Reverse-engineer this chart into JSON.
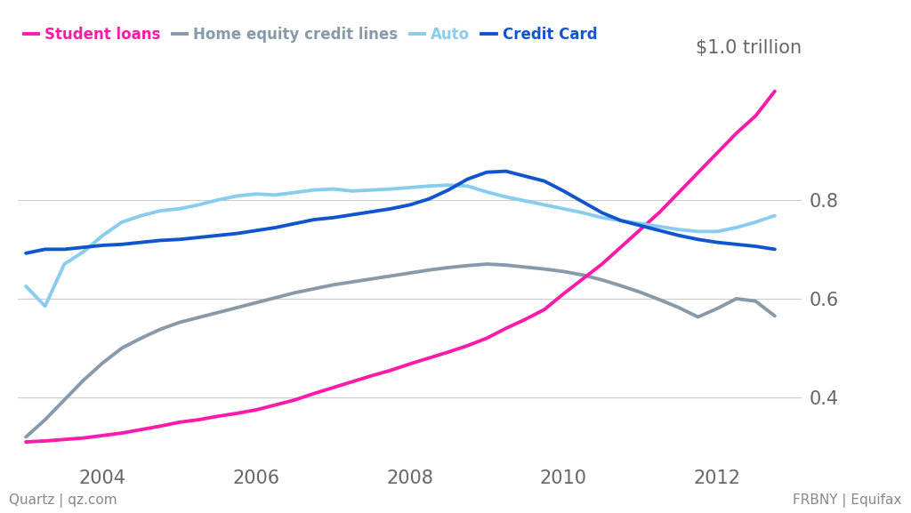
{
  "legend_labels": [
    "Student loans",
    "Home equity credit lines",
    "Auto",
    "Credit Card"
  ],
  "legend_colors": [
    "#ff1aaa",
    "#8899aa",
    "#88ccee",
    "#1155cc"
  ],
  "ylabel_right": "$1.0 trillion",
  "source_left": "Quartz | qz.com",
  "source_right": "FRBNY | Equifax",
  "background_color": "#ffffff",
  "grid_color": "#cccccc",
  "ytick_labels": [
    "0.4",
    "0.6",
    "0.8"
  ],
  "ytick_values": [
    0.4,
    0.6,
    0.8
  ],
  "xlim": [
    2002.9,
    2013.1
  ],
  "ylim": [
    0.27,
    1.08
  ],
  "x_tick_positions": [
    2004,
    2006,
    2008,
    2010,
    2012
  ],
  "student_loans": {
    "x": [
      2003.0,
      2003.25,
      2003.5,
      2003.75,
      2004.0,
      2004.25,
      2004.5,
      2004.75,
      2005.0,
      2005.25,
      2005.5,
      2005.75,
      2006.0,
      2006.25,
      2006.5,
      2006.75,
      2007.0,
      2007.25,
      2007.5,
      2007.75,
      2008.0,
      2008.25,
      2008.5,
      2008.75,
      2009.0,
      2009.25,
      2009.5,
      2009.75,
      2010.0,
      2010.25,
      2010.5,
      2010.75,
      2011.0,
      2011.25,
      2011.5,
      2011.75,
      2012.0,
      2012.25,
      2012.5,
      2012.75
    ],
    "y": [
      0.31,
      0.312,
      0.315,
      0.318,
      0.323,
      0.328,
      0.335,
      0.342,
      0.35,
      0.355,
      0.362,
      0.368,
      0.375,
      0.385,
      0.395,
      0.408,
      0.42,
      0.432,
      0.444,
      0.455,
      0.468,
      0.48,
      0.492,
      0.505,
      0.52,
      0.54,
      0.558,
      0.578,
      0.61,
      0.64,
      0.67,
      0.705,
      0.74,
      0.775,
      0.815,
      0.855,
      0.895,
      0.935,
      0.97,
      1.02
    ],
    "color": "#ff1aaa",
    "linewidth": 2.8
  },
  "home_equity": {
    "x": [
      2003.0,
      2003.25,
      2003.5,
      2003.75,
      2004.0,
      2004.25,
      2004.5,
      2004.75,
      2005.0,
      2005.25,
      2005.5,
      2005.75,
      2006.0,
      2006.25,
      2006.5,
      2006.75,
      2007.0,
      2007.25,
      2007.5,
      2007.75,
      2008.0,
      2008.25,
      2008.5,
      2008.75,
      2009.0,
      2009.25,
      2009.5,
      2009.75,
      2010.0,
      2010.25,
      2010.5,
      2010.75,
      2011.0,
      2011.25,
      2011.5,
      2011.75,
      2012.0,
      2012.25,
      2012.5,
      2012.75
    ],
    "y": [
      0.32,
      0.355,
      0.395,
      0.435,
      0.47,
      0.5,
      0.52,
      0.538,
      0.552,
      0.562,
      0.572,
      0.582,
      0.592,
      0.602,
      0.612,
      0.62,
      0.628,
      0.634,
      0.64,
      0.646,
      0.652,
      0.658,
      0.663,
      0.667,
      0.67,
      0.668,
      0.664,
      0.66,
      0.655,
      0.648,
      0.638,
      0.626,
      0.613,
      0.598,
      0.582,
      0.563,
      0.58,
      0.6,
      0.595,
      0.565
    ],
    "color": "#8899aa",
    "linewidth": 2.8
  },
  "auto": {
    "x": [
      2003.0,
      2003.25,
      2003.5,
      2003.75,
      2004.0,
      2004.25,
      2004.5,
      2004.75,
      2005.0,
      2005.25,
      2005.5,
      2005.75,
      2006.0,
      2006.25,
      2006.5,
      2006.75,
      2007.0,
      2007.25,
      2007.5,
      2007.75,
      2008.0,
      2008.25,
      2008.5,
      2008.75,
      2009.0,
      2009.25,
      2009.5,
      2009.75,
      2010.0,
      2010.25,
      2010.5,
      2010.75,
      2011.0,
      2011.25,
      2011.5,
      2011.75,
      2012.0,
      2012.25,
      2012.5,
      2012.75
    ],
    "y": [
      0.625,
      0.585,
      0.67,
      0.695,
      0.728,
      0.755,
      0.768,
      0.778,
      0.782,
      0.79,
      0.8,
      0.808,
      0.812,
      0.81,
      0.815,
      0.82,
      0.822,
      0.818,
      0.82,
      0.822,
      0.825,
      0.828,
      0.83,
      0.828,
      0.816,
      0.806,
      0.798,
      0.79,
      0.782,
      0.774,
      0.764,
      0.758,
      0.752,
      0.746,
      0.74,
      0.736,
      0.736,
      0.744,
      0.755,
      0.768
    ],
    "color": "#88ccee",
    "linewidth": 2.8
  },
  "credit_card": {
    "x": [
      2003.0,
      2003.25,
      2003.5,
      2003.75,
      2004.0,
      2004.25,
      2004.5,
      2004.75,
      2005.0,
      2005.25,
      2005.5,
      2005.75,
      2006.0,
      2006.25,
      2006.5,
      2006.75,
      2007.0,
      2007.25,
      2007.5,
      2007.75,
      2008.0,
      2008.25,
      2008.5,
      2008.75,
      2009.0,
      2009.25,
      2009.5,
      2009.75,
      2010.0,
      2010.25,
      2010.5,
      2010.75,
      2011.0,
      2011.25,
      2011.5,
      2011.75,
      2012.0,
      2012.25,
      2012.5,
      2012.75
    ],
    "y": [
      0.692,
      0.7,
      0.7,
      0.704,
      0.708,
      0.71,
      0.714,
      0.718,
      0.72,
      0.724,
      0.728,
      0.732,
      0.738,
      0.744,
      0.752,
      0.76,
      0.764,
      0.77,
      0.776,
      0.782,
      0.79,
      0.802,
      0.82,
      0.842,
      0.856,
      0.858,
      0.848,
      0.838,
      0.818,
      0.796,
      0.774,
      0.758,
      0.748,
      0.738,
      0.728,
      0.72,
      0.714,
      0.71,
      0.706,
      0.7
    ],
    "color": "#1155cc",
    "linewidth": 2.8
  }
}
